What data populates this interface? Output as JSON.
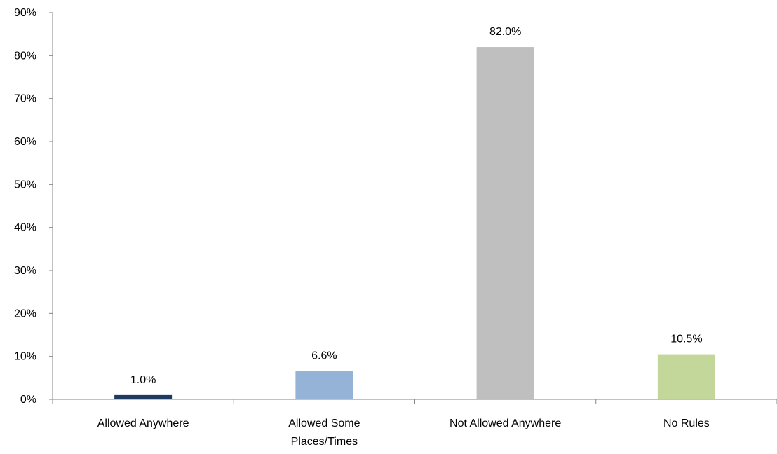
{
  "chart_data": {
    "type": "bar",
    "categories": [
      [
        "Allowed Anywhere"
      ],
      [
        "Allowed Some",
        "Places/Times"
      ],
      [
        "Not Allowed Anywhere"
      ],
      [
        "No Rules"
      ]
    ],
    "values": [
      1.0,
      6.6,
      82.0,
      10.5
    ],
    "data_labels": [
      "1.0%",
      "6.6%",
      "82.0%",
      "10.5%"
    ],
    "bar_colors": [
      "#1f3a5f",
      "#95b3d7",
      "#bfbfbf",
      "#c4d79b"
    ],
    "ylim": [
      0,
      90
    ],
    "yticks": [
      0,
      10,
      20,
      30,
      40,
      50,
      60,
      70,
      80,
      90
    ],
    "ytick_labels": [
      "0%",
      "10%",
      "20%",
      "30%",
      "40%",
      "50%",
      "60%",
      "70%",
      "80%",
      "90%"
    ],
    "grid": false,
    "legend": "none"
  }
}
